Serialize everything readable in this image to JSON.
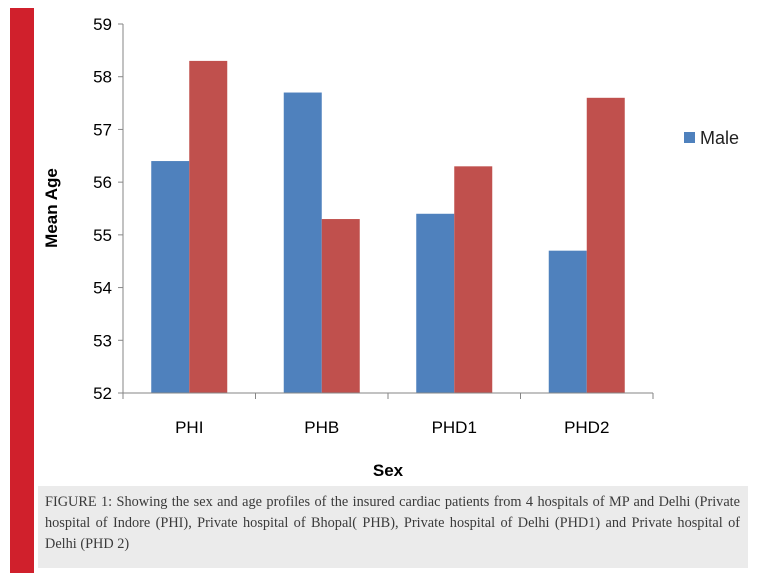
{
  "colors": {
    "male": "#4f81bd",
    "female": "#c0504d",
    "accent": "#d0202c",
    "caption_bg": "#ebebeb"
  },
  "chart_data": {
    "type": "bar",
    "xlabel": "Sex",
    "ylabel": "Mean Age",
    "ylim": [
      52,
      59
    ],
    "yticks": [
      "52",
      "53",
      "54",
      "55",
      "56",
      "57",
      "58",
      "59"
    ],
    "categories": [
      "PHI",
      "PHB",
      "PHD1",
      "PHD2"
    ],
    "series": [
      {
        "name": "Male",
        "values": [
          56.4,
          57.7,
          55.4,
          54.7
        ]
      },
      {
        "values": [
          58.3,
          55.3,
          56.3,
          57.6
        ]
      }
    ],
    "grid": false,
    "legend_position": "right"
  },
  "caption": "FIGURE 1: Showing the sex and age profiles of the insured cardiac patients from 4 hospitals of MP and Delhi (Private hospital of Indore (PHI), Private hospital of Bhopal( PHB), Private hospital of Delhi (PHD1) and Private hospital of Delhi (PHD 2)"
}
